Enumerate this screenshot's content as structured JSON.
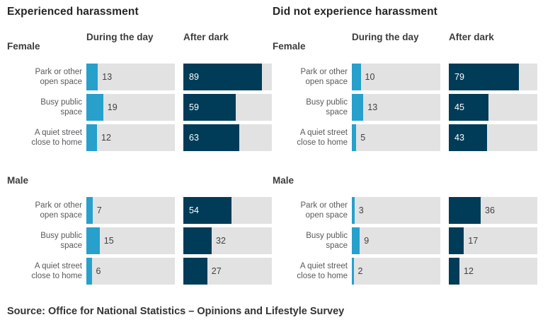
{
  "chart_data": {
    "type": "bar",
    "orientation": "horizontal",
    "unit": "percent",
    "xlim": [
      0,
      100
    ],
    "grid": false,
    "legend_position": "column-headers",
    "columns": [
      "During the day",
      "After dark"
    ],
    "categories": [
      "Park or other open space",
      "Busy public space",
      "A quiet street close to home"
    ],
    "row_labels": [
      "Park or other\nopen space",
      "Busy public\nspace",
      "A quiet street\nclose to home"
    ],
    "panels": [
      {
        "title": "Experienced harassment",
        "groups": [
          {
            "name": "Female",
            "series": [
              {
                "name": "During the day",
                "values": [
                  13,
                  19,
                  12
                ]
              },
              {
                "name": "After dark",
                "values": [
                  89,
                  59,
                  63
                ]
              }
            ]
          },
          {
            "name": "Male",
            "series": [
              {
                "name": "During the day",
                "values": [
                  7,
                  15,
                  6
                ]
              },
              {
                "name": "After dark",
                "values": [
                  54,
                  32,
                  27
                ]
              }
            ]
          }
        ]
      },
      {
        "title": "Did not experience harassment",
        "groups": [
          {
            "name": "Female",
            "series": [
              {
                "name": "During the day",
                "values": [
                  10,
                  13,
                  5
                ]
              },
              {
                "name": "After dark",
                "values": [
                  79,
                  45,
                  43
                ]
              }
            ]
          },
          {
            "name": "Male",
            "series": [
              {
                "name": "During the day",
                "values": [
                  3,
                  9,
                  2
                ]
              },
              {
                "name": "After dark",
                "values": [
                  36,
                  17,
                  12
                ]
              }
            ]
          }
        ]
      }
    ],
    "colors": {
      "during_the_day": "#27a0cc",
      "after_dark": "#003c57",
      "bar_track": "#e2e2e2"
    },
    "source": "Source: Office for National Statistics – Opinions and Lifestyle Survey"
  }
}
